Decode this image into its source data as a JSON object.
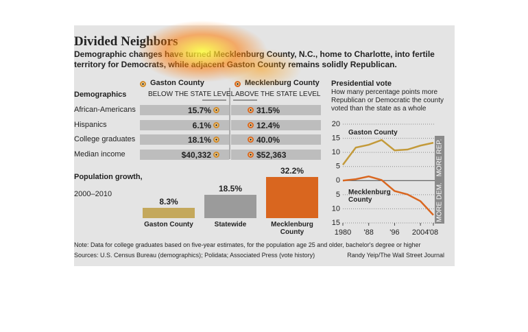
{
  "header": {
    "title": "Divided Neighbors",
    "subtitle": "Demographic changes have turned Mecklenburg County, N.C., home to Charlotte, into fertile territory for Democrats, while adjacent Gaston County remains solidly Republican."
  },
  "chart_data": [
    {
      "type": "dot",
      "title": "Demographics",
      "left_label": "BELOW THE STATE LEVEL",
      "right_label": "ABOVE THE STATE LEVEL",
      "categories": [
        "African-Americans",
        "Hispanics",
        "College graduates",
        "Median income"
      ],
      "series": [
        {
          "name": "Gaston County",
          "color": "#d08a2a",
          "values": [
            15.7,
            6.1,
            18.1,
            40332
          ],
          "value_labels": [
            "15.7%",
            "6.1%",
            "18.1%",
            "$40,332"
          ]
        },
        {
          "name": "Mecklenburg County",
          "color": "#d9661f",
          "values": [
            31.5,
            12.4,
            40.0,
            52363
          ],
          "value_labels": [
            "31.5%",
            "12.4%",
            "40.0%",
            "$52,363"
          ]
        }
      ]
    },
    {
      "type": "bar",
      "title": "Population growth,",
      "subtitle": "2000–2010",
      "categories": [
        "Gaston County",
        "Statewide",
        "Mecklenburg County"
      ],
      "values": [
        8.3,
        18.5,
        32.2
      ],
      "value_labels": [
        "8.3%",
        "18.5%",
        "32.2%"
      ],
      "colors": [
        "#c4a85c",
        "#9b9b9b",
        "#d9661f"
      ]
    },
    {
      "type": "line",
      "title": "Presidential vote",
      "subtitle": "How many percentage points more Republican or Democratic the county voted than the state as a whole",
      "x": [
        1980,
        1984,
        1988,
        1992,
        1996,
        2000,
        2004,
        2008
      ],
      "xlim": [
        1980,
        2008
      ],
      "xticks": [
        1980,
        {
          "value": 1988,
          "label": "'88"
        },
        {
          "value": 1996,
          "label": "'96"
        },
        2004,
        {
          "value": 2008,
          "label": "'08"
        }
      ],
      "ylim": [
        -15,
        20
      ],
      "yticks": [
        20,
        15,
        10,
        5,
        0,
        {
          "value": -5,
          "label": "5"
        },
        {
          "value": -10,
          "label": "10"
        },
        {
          "value": -15,
          "label": "15"
        }
      ],
      "grid": true,
      "annotations": [
        "MORE REP.",
        "MORE DEM."
      ],
      "series": [
        {
          "name": "Gaston County",
          "color": "#c39a3a",
          "values": [
            5.6,
            11.7,
            12.7,
            14.4,
            10.7,
            11,
            12.4,
            13.4
          ]
        },
        {
          "name": "Mecklenburg County",
          "color": "#d9661f",
          "values": [
            0,
            0.5,
            1.5,
            0.2,
            -3.7,
            -4.9,
            -7.3,
            -12.2
          ]
        }
      ]
    }
  ],
  "footer": {
    "note": "Note: Data for college graduates based on five-year estimates, for the population age 25 and older, bachelor's degree or higher",
    "sources": "Sources: U.S. Census Bureau (demographics); Polidata; Associated Press (vote history)",
    "credit": "Randy Yeip/The Wall Street Journal"
  }
}
